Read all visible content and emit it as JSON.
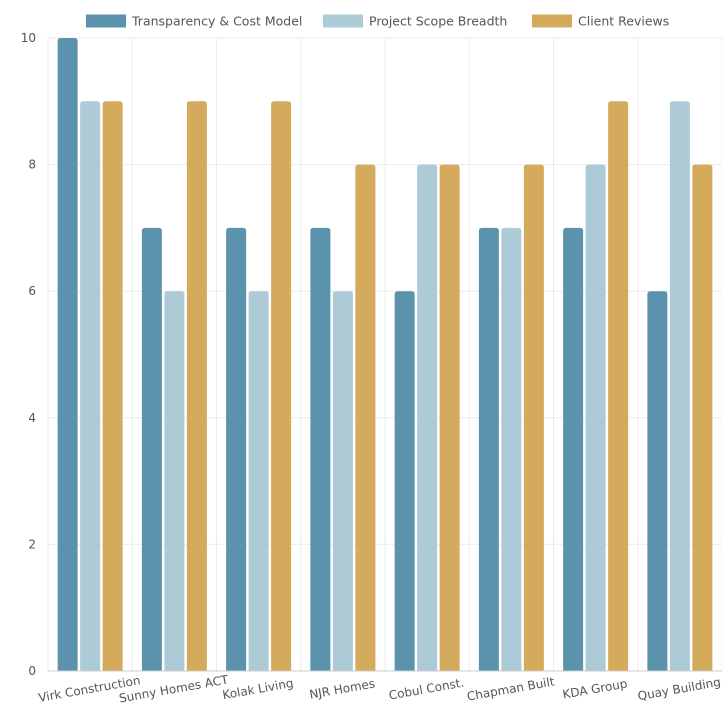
{
  "chart_data": {
    "type": "bar",
    "title": "",
    "xlabel": "",
    "ylabel": "",
    "ylim": [
      0,
      10
    ],
    "yticks": [
      0,
      2,
      4,
      6,
      8,
      10
    ],
    "grid": true,
    "legend_position": "top-center",
    "categories": [
      "Virk Construction",
      "Sunny Homes ACT",
      "Kolak Living",
      "NJR Homes",
      "Cobul Const.",
      "Chapman Built",
      "KDA Group",
      "Quay Building"
    ],
    "series": [
      {
        "name": "Transparency & Cost Model",
        "color": "#5b93ad",
        "values": [
          10,
          7,
          7,
          7,
          6,
          7,
          7,
          6
        ]
      },
      {
        "name": "Project Scope Breadth",
        "color": "#adcad7",
        "values": [
          9,
          6,
          6,
          6,
          8,
          7,
          8,
          9
        ]
      },
      {
        "name": "Client Reviews",
        "color": "#d4aa5c",
        "values": [
          9,
          9,
          9,
          8,
          8,
          8,
          9,
          8
        ]
      }
    ],
    "colors": {
      "grid": "#ebebeb",
      "axis": "#cccccc",
      "text": "#555555"
    }
  }
}
